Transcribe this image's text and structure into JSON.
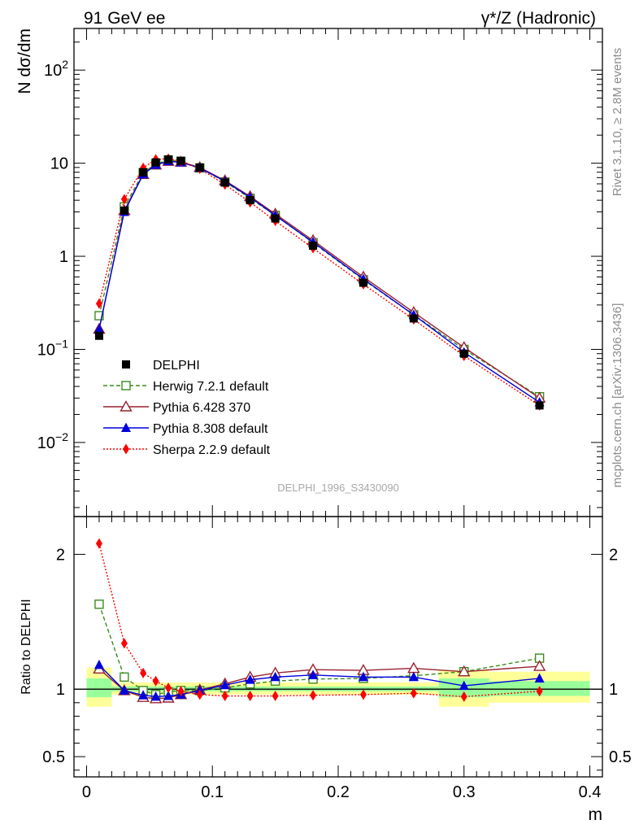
{
  "header": {
    "left_title": "91 GeV ee",
    "right_title": "γ*/Z (Hadronic)"
  },
  "side_labels": {
    "rivet": "Rivet 3.1.10, ≥ 2.8M events",
    "mcplots": "mcplots.cern.ch [arXiv:1306.3436]"
  },
  "watermark": "DELPHI_1996_S3430090",
  "colors": {
    "data": "#000000",
    "herwig": "#3a8c1f",
    "pythia6": "#99222f",
    "pythia8": "#0000dd",
    "sherpa": "#ff0000",
    "band_inner": "#99ff99",
    "band_outer": "#ffff99"
  },
  "chart_data": [
    {
      "type": "scatter",
      "panel": "main",
      "ylabel": "N dσ/dm",
      "yscale": "log",
      "xlim": [
        -0.01,
        0.41
      ],
      "ylim": [
        0.0016,
        280
      ],
      "y_ticks": [
        {
          "value": 0.01,
          "base": "10",
          "exp": "−2"
        },
        {
          "value": 0.1,
          "base": "10",
          "exp": "−1"
        },
        {
          "value": 1,
          "base": "1",
          "exp": ""
        },
        {
          "value": 10,
          "base": "10",
          "exp": ""
        },
        {
          "value": 100,
          "base": "10",
          "exp": "2"
        }
      ],
      "legend_position": "lower-left",
      "x": [
        0.01,
        0.03,
        0.045,
        0.055,
        0.065,
        0.075,
        0.09,
        0.11,
        0.13,
        0.15,
        0.18,
        0.22,
        0.26,
        0.3,
        0.36
      ],
      "series": [
        {
          "key": "data",
          "name": "DELPHI",
          "marker": "square-filled",
          "line": "none",
          "values": [
            0.14,
            3.1,
            8.0,
            10.2,
            11.0,
            10.6,
            9.0,
            6.2,
            4.0,
            2.55,
            1.3,
            0.52,
            0.215,
            0.09,
            0.025
          ]
        },
        {
          "key": "herwig",
          "name": "Herwig 7.2.1 default",
          "marker": "square-open",
          "line": "dashed",
          "values": [
            0.23,
            3.4,
            7.9,
            9.8,
            10.8,
            10.5,
            8.9,
            6.3,
            4.2,
            2.75,
            1.4,
            0.56,
            0.235,
            0.1,
            0.031
          ]
        },
        {
          "key": "pythia6",
          "name": "Pythia 6.428 370",
          "marker": "triangle-open",
          "line": "solid",
          "values": [
            0.165,
            3.1,
            7.6,
            9.6,
            10.5,
            10.3,
            9.0,
            6.5,
            4.4,
            2.85,
            1.48,
            0.6,
            0.25,
            0.105,
            0.03
          ]
        },
        {
          "key": "pythia8",
          "name": "Pythia 8.308 default",
          "marker": "triangle-filled",
          "line": "solid",
          "values": [
            0.165,
            3.0,
            7.6,
            9.6,
            10.5,
            10.2,
            8.9,
            6.4,
            4.3,
            2.75,
            1.42,
            0.57,
            0.235,
            0.093,
            0.027
          ]
        },
        {
          "key": "sherpa",
          "name": "Sherpa 2.2.9 default",
          "marker": "diamond-filled",
          "line": "dotted",
          "values": [
            0.31,
            4.1,
            8.9,
            11.0,
            11.2,
            10.5,
            8.7,
            5.9,
            3.8,
            2.4,
            1.22,
            0.5,
            0.21,
            0.085,
            0.025
          ]
        }
      ]
    },
    {
      "type": "scatter",
      "panel": "ratio",
      "ylabel": "Ratio to DELPHI",
      "xlabel": "m",
      "xlim": [
        -0.01,
        0.41
      ],
      "ylim": [
        0.35,
        2.28
      ],
      "x_ticks": [
        "0",
        "0.1",
        "0.2",
        "0.3",
        "0.4"
      ],
      "x_tick_values": [
        0,
        0.1,
        0.2,
        0.3,
        0.4
      ],
      "y_ticks": [
        "0.5",
        "1",
        "2"
      ],
      "y_tick_values": [
        0.5,
        1,
        2
      ],
      "x": [
        0.01,
        0.03,
        0.045,
        0.055,
        0.065,
        0.075,
        0.09,
        0.11,
        0.13,
        0.15,
        0.18,
        0.22,
        0.26,
        0.3,
        0.36
      ],
      "series": [
        {
          "key": "herwig",
          "name": "Herwig 7.2.1 default",
          "values": [
            1.63,
            1.09,
            0.99,
            0.96,
            0.98,
            0.99,
            0.99,
            1.01,
            1.04,
            1.06,
            1.075,
            1.08,
            1.1,
            1.13,
            1.23
          ]
        },
        {
          "key": "pythia6",
          "name": "Pythia 6.428 370",
          "values": [
            1.15,
            0.99,
            0.94,
            0.93,
            0.935,
            0.96,
            0.995,
            1.04,
            1.09,
            1.12,
            1.145,
            1.14,
            1.155,
            1.13,
            1.17
          ]
        },
        {
          "key": "pythia8",
          "name": "Pythia 8.308 default",
          "values": [
            1.18,
            0.99,
            0.955,
            0.945,
            0.95,
            0.96,
            0.99,
            1.03,
            1.07,
            1.09,
            1.105,
            1.09,
            1.09,
            1.025,
            1.08
          ]
        },
        {
          "key": "sherpa",
          "name": "Sherpa 2.2.9 default",
          "values": [
            2.08,
            1.34,
            1.12,
            1.06,
            1.01,
            0.985,
            0.96,
            0.95,
            0.95,
            0.95,
            0.955,
            0.96,
            0.97,
            0.945,
            0.985
          ]
        }
      ],
      "bands": [
        {
          "x0": 0.0,
          "x1": 0.02,
          "inner": [
            0.94,
            1.08
          ],
          "outer": [
            0.87,
            1.16
          ]
        },
        {
          "x0": 0.02,
          "x1": 0.28,
          "inner": [
            0.985,
            1.02
          ],
          "outer": [
            0.96,
            1.05
          ]
        },
        {
          "x0": 0.28,
          "x1": 0.32,
          "inner": [
            0.94,
            1.08
          ],
          "outer": [
            0.87,
            1.14
          ]
        },
        {
          "x0": 0.32,
          "x1": 0.4,
          "inner": [
            0.95,
            1.06
          ],
          "outer": [
            0.9,
            1.13
          ]
        }
      ]
    }
  ]
}
